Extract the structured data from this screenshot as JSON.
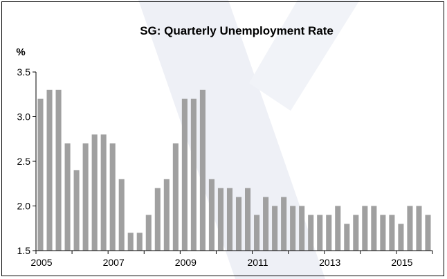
{
  "chart_data": {
    "type": "bar",
    "title": "SG: Quarterly Unemployment Rate",
    "xlabel": "",
    "ylabel": "%",
    "ylim": [
      1.5,
      3.5
    ],
    "yticks": [
      "1.5",
      "2.0",
      "2.5",
      "3.0",
      "3.5"
    ],
    "xtick_labels": [
      "2005",
      "2007",
      "2009",
      "2011",
      "2013",
      "2015"
    ],
    "bar_color": "#a0a0a0",
    "categories": [
      "2005Q1",
      "2005Q2",
      "2005Q3",
      "2005Q4",
      "2006Q1",
      "2006Q2",
      "2006Q3",
      "2006Q4",
      "2007Q1",
      "2007Q2",
      "2007Q3",
      "2007Q4",
      "2008Q1",
      "2008Q2",
      "2008Q3",
      "2008Q4",
      "2009Q1",
      "2009Q2",
      "2009Q3",
      "2009Q4",
      "2010Q1",
      "2010Q2",
      "2010Q3",
      "2010Q4",
      "2011Q1",
      "2011Q2",
      "2011Q3",
      "2011Q4",
      "2012Q1",
      "2012Q2",
      "2012Q3",
      "2012Q4",
      "2013Q1",
      "2013Q2",
      "2013Q3",
      "2013Q4",
      "2014Q1",
      "2014Q2",
      "2014Q3",
      "2014Q4",
      "2015Q1",
      "2015Q2",
      "2015Q3",
      "2015Q4"
    ],
    "values": [
      3.2,
      3.3,
      3.3,
      2.7,
      2.4,
      2.7,
      2.8,
      2.8,
      2.7,
      2.3,
      1.7,
      1.7,
      1.9,
      2.2,
      2.3,
      2.7,
      3.2,
      3.2,
      3.3,
      2.3,
      2.2,
      2.2,
      2.1,
      2.2,
      1.9,
      2.1,
      2.0,
      2.1,
      2.0,
      2.0,
      1.9,
      1.9,
      1.9,
      2.0,
      1.8,
      1.9,
      2.0,
      2.0,
      1.9,
      1.9,
      1.8,
      2.0,
      2.0,
      1.9
    ],
    "grid": false,
    "legend": "none"
  }
}
